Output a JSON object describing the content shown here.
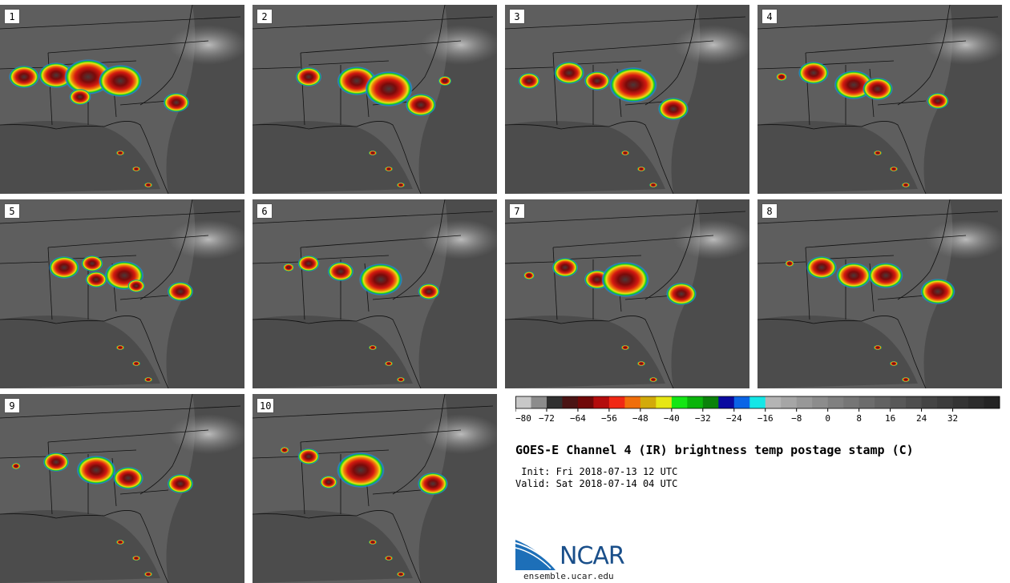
{
  "panels": [
    {
      "label": "1"
    },
    {
      "label": "2"
    },
    {
      "label": "3"
    },
    {
      "label": "4"
    },
    {
      "label": "5"
    },
    {
      "label": "6"
    },
    {
      "label": "7"
    },
    {
      "label": "8"
    },
    {
      "label": "9"
    },
    {
      "label": "10"
    }
  ],
  "colorbar": {
    "tick_labels": [
      "−80",
      "−72",
      "−64",
      "−56",
      "−48",
      "−40",
      "−32",
      "−24",
      "−16",
      "−8",
      "0",
      "8",
      "16",
      "24",
      "32"
    ],
    "colors": [
      "#c8c8c8",
      "#8c8c8c",
      "#303030",
      "#4a1414",
      "#700808",
      "#b40c0c",
      "#f02814",
      "#f06e0a",
      "#d2aa0a",
      "#e6e614",
      "#14e614",
      "#0ab40a",
      "#0a820a",
      "#0a0aa0",
      "#0a64e6",
      "#14e6e6",
      "#b4b4b4",
      "#a6a6a6",
      "#989898",
      "#8c8c8c",
      "#808080",
      "#767676",
      "#6c6c6c",
      "#626262",
      "#585858",
      "#4e4e4e",
      "#444444",
      "#3c3c3c",
      "#343434",
      "#2c2c2c",
      "#242424"
    ]
  },
  "title": "GOES-E Channel 4 (IR) brightness temp postage stamp (C)",
  "init_line": " Init: Fri 2018-07-13 12 UTC",
  "valid_line": "Valid: Sat 2018-07-14 04 UTC",
  "logo_text": "NCAR",
  "url": "ensemble.ucar.edu"
}
